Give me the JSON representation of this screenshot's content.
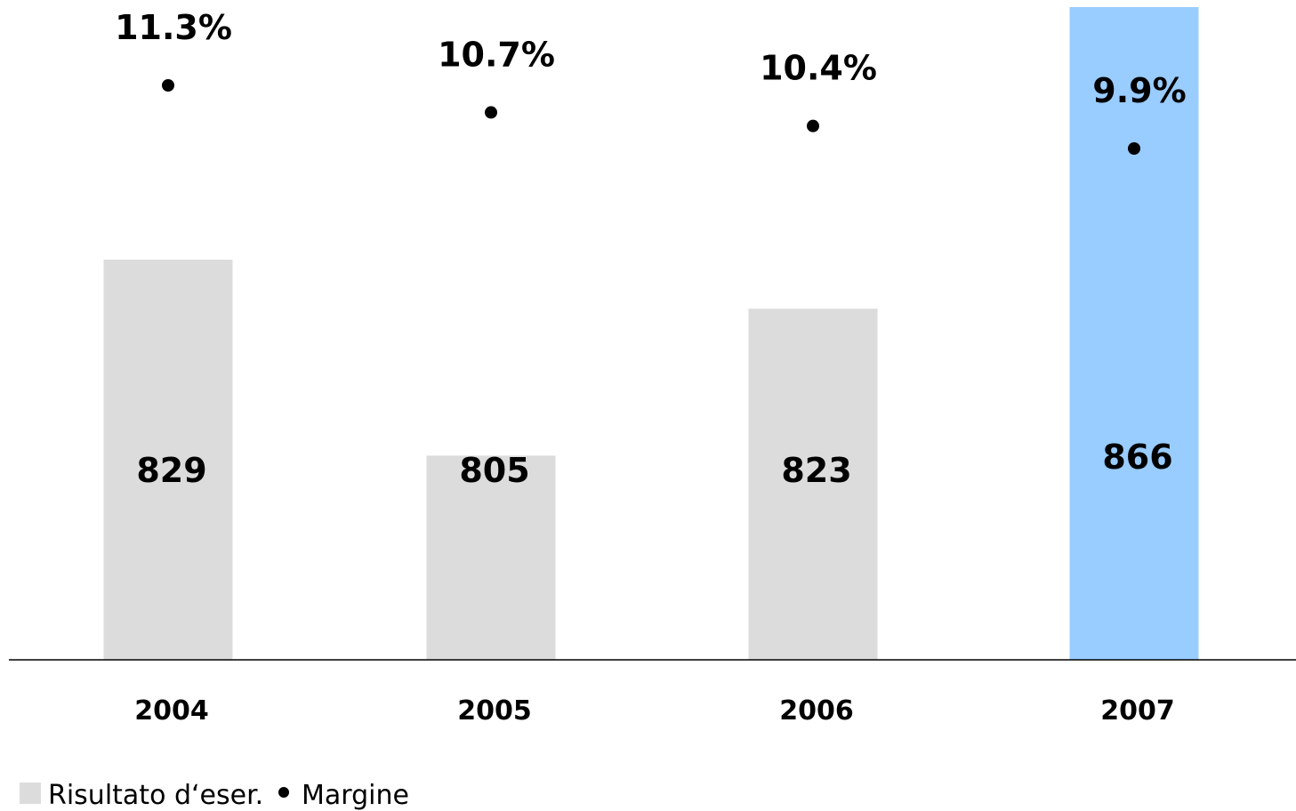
{
  "chart_data": {
    "type": "bar",
    "categories": [
      "2004",
      "2005",
      "2006",
      "2007"
    ],
    "series": [
      {
        "name": "Risultato d‘eser.",
        "kind": "bar",
        "values": [
          829,
          805,
          823,
          866
        ]
      },
      {
        "name": "Margine",
        "kind": "point",
        "values": [
          11.3,
          10.7,
          10.4,
          9.9
        ],
        "labels": [
          "11.3%",
          "10.7%",
          "10.4%",
          "9.9%"
        ]
      }
    ],
    "bar_labels": [
      "829",
      "805",
      "823",
      "866"
    ],
    "colors": {
      "bar": "#dcdcdc",
      "highlight_bar": "#99ccff",
      "marker": "#000000",
      "axis": "#000000"
    },
    "highlight_index": 3,
    "legend": {
      "placement": "bottom-left",
      "items": [
        {
          "label": "Risultato d‘eser.",
          "symbol": "square"
        },
        {
          "label": "Margine",
          "symbol": "dot"
        }
      ]
    },
    "grid": false
  }
}
